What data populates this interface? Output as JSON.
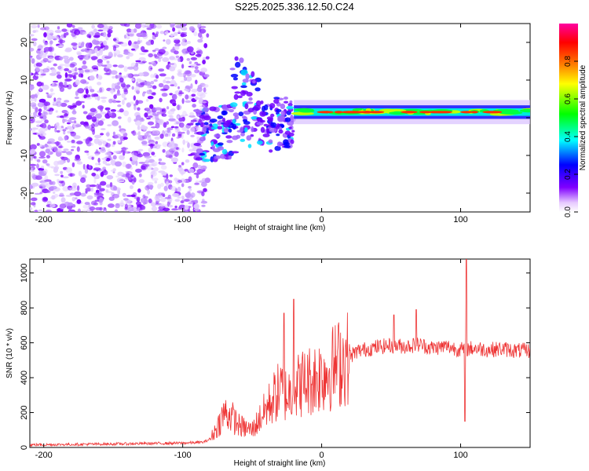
{
  "title": "S225.2025.336.12.50.C24",
  "chart_data": [
    {
      "type": "heatmap",
      "xlabel": "Height of straight line (km)",
      "ylabel": "Frequency (Hz)",
      "xlim": [
        -210,
        150
      ],
      "ylim": [
        -25,
        25
      ],
      "xticks": [
        -200,
        -100,
        0,
        100
      ],
      "yticks": [
        -20,
        -10,
        0,
        10,
        20
      ],
      "colorbar": {
        "label": "Normalized spectral amplitude",
        "range": [
          0,
          1
        ],
        "ticks": [
          "0.0",
          "0.2",
          "0.4",
          "0.6",
          "0.8"
        ],
        "tick_values": [
          0,
          0.2,
          0.4,
          0.6,
          0.8
        ],
        "colors": [
          "#ffffff",
          "#e6c8ff",
          "#8000ff",
          "#0000ff",
          "#00ffff",
          "#00ff00",
          "#ffff00",
          "#ff8000",
          "#ff0000",
          "#ff00a0"
        ]
      },
      "features": {
        "noise_region_x": [
          -210,
          -90
        ],
        "dispersed_region_x": [
          -90,
          -20
        ],
        "carrier_x": [
          -20,
          150
        ],
        "carrier_frequency_hz": 1.5
      }
    },
    {
      "type": "line",
      "xlabel": "Height of straight line (km)",
      "ylabel": "SNR (10 * v/v)",
      "xlim": [
        -210,
        150
      ],
      "ylim": [
        0,
        1080
      ],
      "xticks": [
        -200,
        -100,
        0,
        100
      ],
      "yticks": [
        0,
        200,
        400,
        600,
        800,
        1000
      ],
      "color": "#ee3333",
      "series": [
        {
          "name": "SNR",
          "x": [
            -210,
            -150,
            -100,
            -85,
            -80,
            -75,
            -70,
            -65,
            -60,
            -55,
            -50,
            -45,
            -40,
            -35,
            -30,
            -25,
            -20,
            -15,
            -10,
            -5,
            0,
            5,
            10,
            15,
            20,
            25,
            30,
            40,
            50,
            60,
            70,
            80,
            90,
            100,
            110,
            120,
            130,
            140,
            150
          ],
          "y": [
            15,
            20,
            25,
            30,
            50,
            120,
            200,
            180,
            130,
            110,
            100,
            160,
            220,
            280,
            330,
            300,
            330,
            370,
            380,
            400,
            420,
            440,
            470,
            500,
            520,
            550,
            560,
            575,
            585,
            580,
            590,
            570,
            580,
            560,
            570,
            560,
            565,
            555,
            555
          ]
        }
      ],
      "spikes": [
        {
          "x": -27,
          "y": 770
        },
        {
          "x": -20,
          "y": 850
        },
        {
          "x": 52,
          "y": 760
        },
        {
          "x": 68,
          "y": 790
        },
        {
          "x": 104,
          "y": 1080
        },
        {
          "x": 103,
          "y": 150
        }
      ]
    }
  ]
}
